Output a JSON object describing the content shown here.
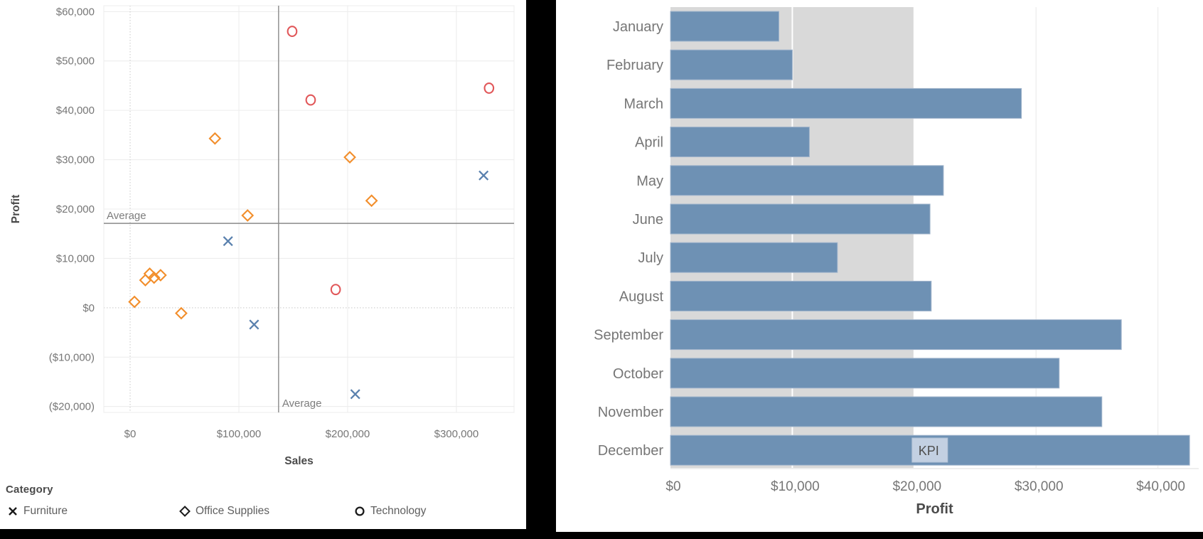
{
  "left_chart": {
    "y_axis_title": "Profit",
    "x_axis_title": "Sales",
    "avg_label": "Average",
    "legend_title": "Category",
    "legend": [
      {
        "label": "Furniture",
        "marker": "x"
      },
      {
        "label": "Office Supplies",
        "marker": "diamond"
      },
      {
        "label": "Technology",
        "marker": "circle"
      }
    ]
  },
  "right_chart": {
    "x_axis_title": "Profit",
    "kpi_label": "KPI"
  },
  "colors": {
    "furniture": "#5A81AE",
    "office_supplies": "#F28E2B",
    "technology": "#E15759",
    "bar_fill": "#6E91B4",
    "bar_stroke": "#A3B6CD",
    "kpi_band": "#D9D9D9",
    "kpi_box_fill": "#C3D0E2",
    "kpi_box_stroke": "#B2C2D6",
    "axis_text": "#767676",
    "title_text": "#4a4a4a",
    "grid": "#ECECEC",
    "zero_line": "#C8C8C8",
    "ref_line": "#8A8A8A",
    "legend_marker": "#1a1a1a"
  },
  "chart_data": [
    {
      "type": "scatter",
      "xlabel": "Sales",
      "ylabel": "Profit",
      "xlim": [
        -24200,
        353000
      ],
      "ylim": [
        -21200,
        61200
      ],
      "x_ticks": [
        0,
        100000,
        200000,
        300000
      ],
      "y_ticks": [
        -20000,
        -10000,
        0,
        10000,
        20000,
        30000,
        40000,
        50000,
        60000
      ],
      "grid": true,
      "reference_lines": {
        "label": "Average",
        "avg_profit": 17100,
        "avg_sales": 136500
      },
      "legend_position": "bottom-left",
      "series": [
        {
          "name": "Furniture",
          "marker": "x",
          "points": [
            [
              90000,
              13500
            ],
            [
              114000,
              -3400
            ],
            [
              207000,
              -17500
            ],
            [
              325000,
              26800
            ]
          ]
        },
        {
          "name": "Office Supplies",
          "marker": "diamond",
          "points": [
            [
              4000,
              1200
            ],
            [
              14000,
              5600
            ],
            [
              18000,
              6900
            ],
            [
              22000,
              6100
            ],
            [
              28000,
              6600
            ],
            [
              47000,
              -1100
            ],
            [
              78000,
              34300
            ],
            [
              108000,
              18700
            ],
            [
              202000,
              30500
            ],
            [
              222000,
              21700
            ]
          ]
        },
        {
          "name": "Technology",
          "marker": "circle",
          "points": [
            [
              149000,
              56000
            ],
            [
              166000,
              42100
            ],
            [
              189000,
              3700
            ],
            [
              330000,
              44500
            ]
          ]
        }
      ]
    },
    {
      "type": "bar",
      "orientation": "horizontal",
      "xlabel": "Profit",
      "categories": [
        "January",
        "February",
        "March",
        "April",
        "May",
        "June",
        "July",
        "August",
        "September",
        "October",
        "November",
        "December"
      ],
      "values": [
        8900,
        10000,
        28800,
        11400,
        22400,
        21300,
        13700,
        21400,
        37000,
        31900,
        35400,
        42600
      ],
      "x_ticks": [
        0,
        10000,
        20000,
        30000,
        40000
      ],
      "xlim": [
        0,
        43350
      ],
      "kpi_band": {
        "from": 0,
        "to": 20000,
        "label": "KPI"
      }
    }
  ]
}
